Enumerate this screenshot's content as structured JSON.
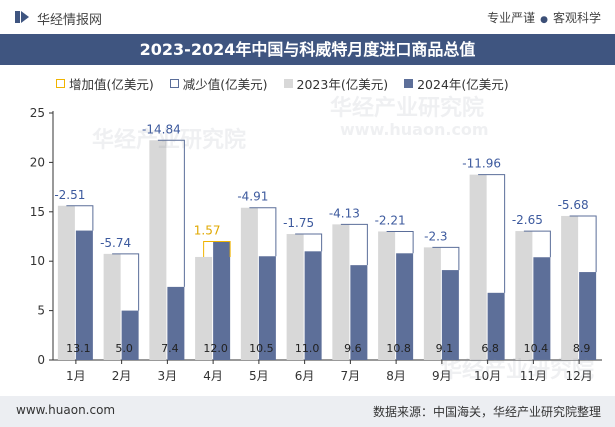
{
  "header": {
    "brand": "华经情报网",
    "slogan_left": "专业严谨",
    "slogan_right": "客观科学"
  },
  "chart_title": "2023-2024年中国与科威特月度进口商品总值",
  "legend": {
    "increase": "增加值(亿美元)",
    "decrease": "减少值(亿美元)",
    "y2023": "2023年(亿美元)",
    "y2024": "2024年(亿美元)"
  },
  "colors": {
    "bar_2023": "#d8d8d8",
    "bar_2024": "#5d6f99",
    "increase": "#f0b400",
    "decrease": "#5b6e99",
    "title_bg": "#3f5580",
    "label_dec": "#3d5a9e",
    "label_inc": "#e0a800"
  },
  "chart_data": {
    "type": "bar",
    "title": "2023-2024年中国与科威特月度进口商品总值",
    "categories": [
      "1月",
      "2月",
      "3月",
      "4月",
      "5月",
      "6月",
      "7月",
      "8月",
      "9月",
      "10月",
      "11月",
      "12月"
    ],
    "series": [
      {
        "name": "2023年(亿美元)",
        "values": [
          15.61,
          10.74,
          22.24,
          10.43,
          15.41,
          12.75,
          13.73,
          13.01,
          11.4,
          18.76,
          13.05,
          14.58
        ]
      },
      {
        "name": "2024年(亿美元)",
        "values": [
          13.1,
          5.0,
          7.4,
          12.0,
          10.5,
          11.0,
          9.6,
          10.8,
          9.1,
          6.8,
          10.4,
          8.9
        ]
      }
    ],
    "changes": [
      -2.51,
      -5.74,
      -14.84,
      1.57,
      -4.91,
      -1.75,
      -4.13,
      -2.21,
      -2.3,
      -11.96,
      -2.65,
      -5.68
    ],
    "change_labels": [
      "-2.51",
      "-5.74",
      "-14.84",
      "1.57",
      "-4.91",
      "-1.75",
      "-4.13",
      "-2.21",
      "-2.3",
      "-11.96",
      "-2.65",
      "-5.68"
    ],
    "value_labels_2024": [
      "13.1",
      "5.0",
      "7.4",
      "12.0",
      "10.5",
      "11.0",
      "9.6",
      "10.8",
      "9.1",
      "6.8",
      "10.4",
      "8.9"
    ],
    "yticks": [
      "0",
      "5",
      "10",
      "15",
      "20",
      "25"
    ],
    "ylim": [
      0,
      25
    ],
    "grid": false,
    "legend_position": "top"
  },
  "footer": {
    "site": "www.huaon.com",
    "source": "数据来源：中国海关，华经产业研究院整理"
  },
  "watermarks": [
    "华经产业研究院",
    "www.huaon.com"
  ]
}
